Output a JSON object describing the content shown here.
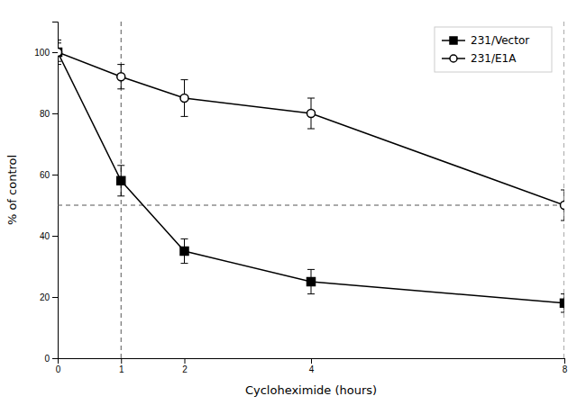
{
  "chart_data": {
    "type": "line",
    "xlabel": "Cycloheximide (hours)",
    "ylabel": "% of control",
    "x": [
      0,
      1,
      2,
      4,
      8
    ],
    "series": [
      {
        "name": "231/Vector",
        "color": "black",
        "marker": "square",
        "values": [
          100,
          58,
          35,
          25,
          18
        ],
        "errors": [
          3,
          5,
          4,
          4,
          3
        ]
      },
      {
        "name": "231/E1A",
        "color": "black",
        "marker": "open-circle",
        "values": [
          100,
          92,
          85,
          80,
          50
        ],
        "errors": [
          4,
          4,
          6,
          5,
          5
        ]
      }
    ],
    "xlim": [
      0,
      8
    ],
    "ylim": [
      0,
      110
    ],
    "xticks": [
      0,
      1,
      2,
      4,
      8
    ],
    "yticks": [
      0,
      20,
      40,
      60,
      80,
      100
    ],
    "hlines": [
      50
    ],
    "vlines": [
      1.0,
      8.0
    ],
    "legend": "upper right"
  }
}
